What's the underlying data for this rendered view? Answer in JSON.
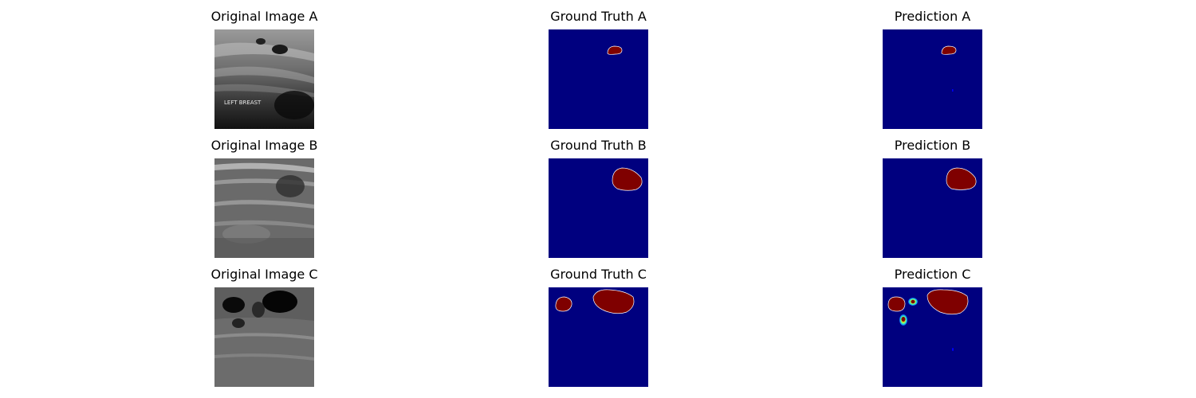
{
  "figure": {
    "rows": [
      {
        "original_title": "Original Image A",
        "ground_truth_title": "Ground Truth A",
        "prediction_title": "Prediction A",
        "ultrasound_overlay_text": "LEFT BREAST"
      },
      {
        "original_title": "Original Image B",
        "ground_truth_title": "Ground Truth B",
        "prediction_title": "Prediction B"
      },
      {
        "original_title": "Original Image C",
        "ground_truth_title": "Ground Truth C",
        "prediction_title": "Prediction C"
      }
    ],
    "colors": {
      "mask_background": "#00007f",
      "mask_lesion": "#7f0000",
      "lesion_outline": "#ffffff"
    }
  }
}
